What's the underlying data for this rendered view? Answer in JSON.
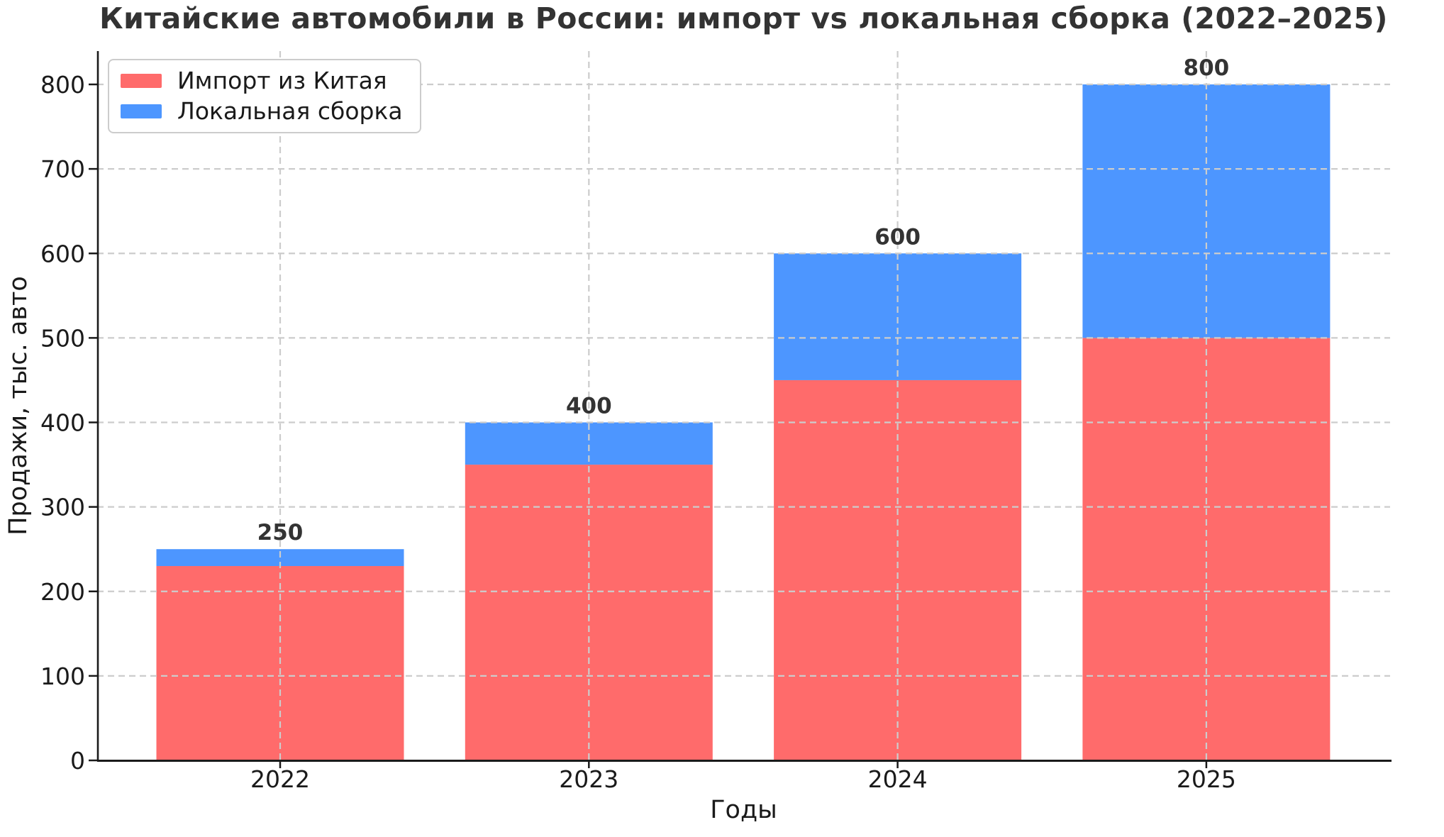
{
  "chart_data": {
    "type": "bar",
    "stacked": true,
    "title": "Китайские автомобили в России: импорт vs локальная сборка (2022–2025)",
    "xlabel": "Годы",
    "ylabel": "Продажи, тыс. авто",
    "categories": [
      "2022",
      "2023",
      "2024",
      "2025"
    ],
    "series": [
      {
        "name": "Импорт из Китая",
        "color": "#FF6B6B",
        "values": [
          230,
          350,
          450,
          500
        ]
      },
      {
        "name": "Локальная сборка",
        "color": "#4D96FF",
        "values": [
          20,
          50,
          150,
          300
        ]
      }
    ],
    "totals": [
      250,
      400,
      600,
      800
    ],
    "total_labels": [
      "250",
      "400",
      "600",
      "800"
    ],
    "ylim": [
      0,
      840
    ],
    "yticks": [
      0,
      100,
      200,
      300,
      400,
      500,
      600,
      700,
      800
    ],
    "grid": "dashed-both-axes-over-bars",
    "legend_position": "upper-left"
  },
  "colors": {
    "background": "#ffffff",
    "grid": "#cccccc",
    "axis": "#1a1a1a",
    "tick_text": "#1a1a1a",
    "title_text": "#333333",
    "value_label_text": "#333333"
  }
}
